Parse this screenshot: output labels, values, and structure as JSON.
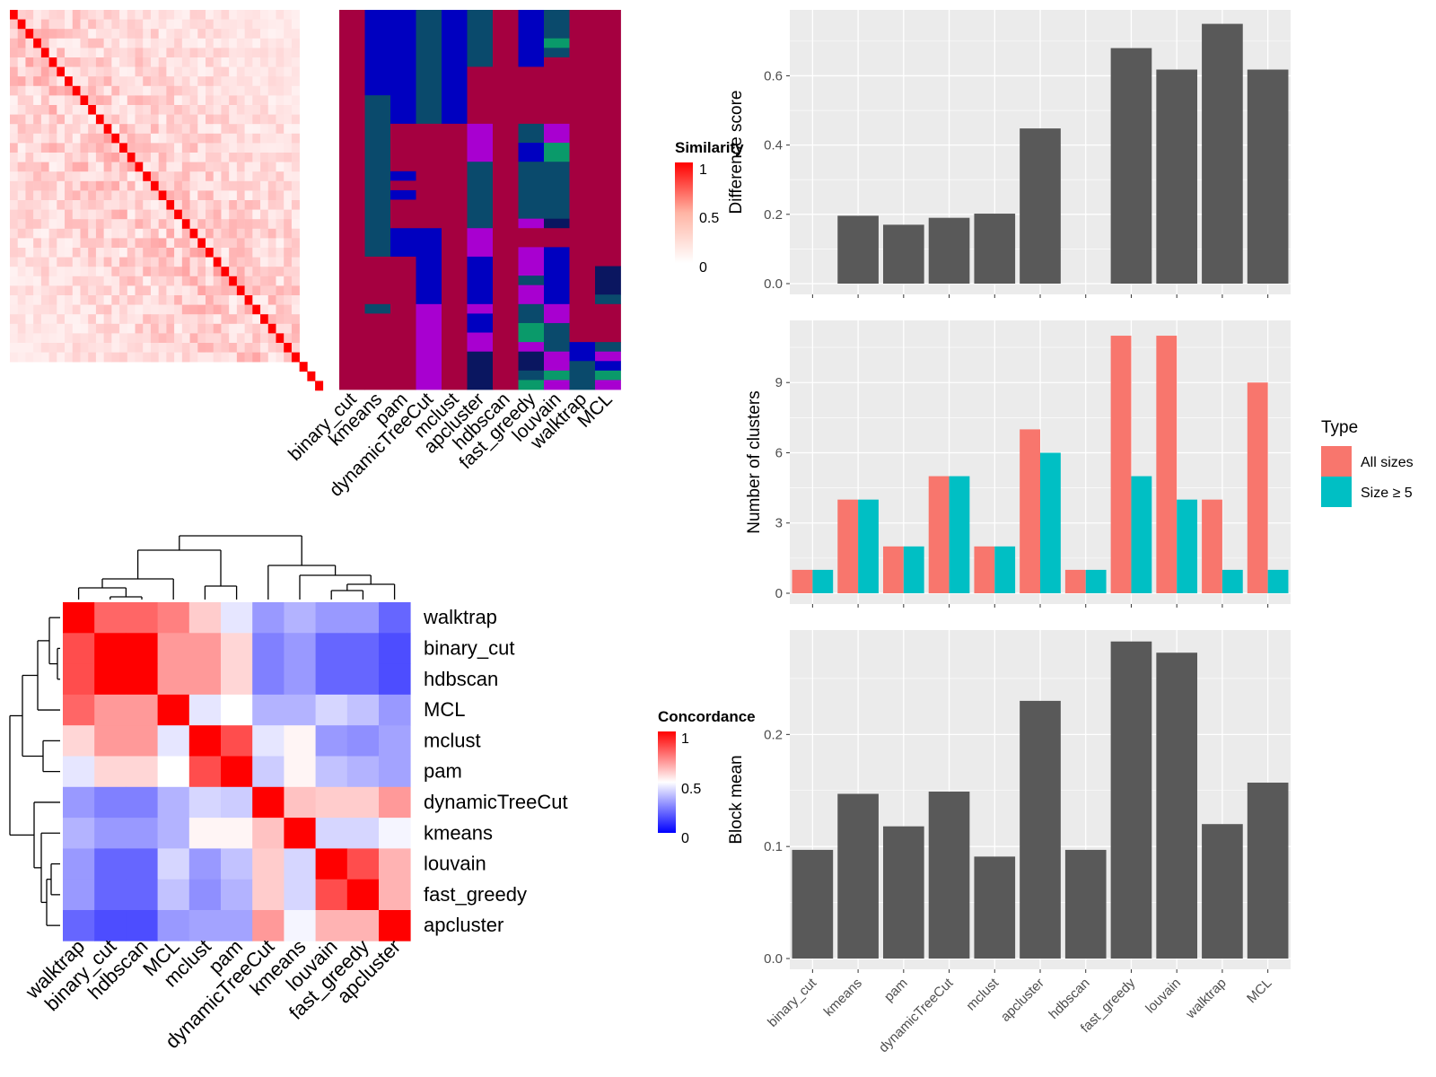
{
  "colors": {
    "sim_high": "#ff0000",
    "sim_low": "#ffffff",
    "class_crimson": "#a50040",
    "class_navy": "#05055f",
    "class_blue": "#0000c0",
    "class_teal": "#0a4a6c",
    "class_green": "#0a9a6a",
    "class_purple": "#a800d0",
    "class_dark": "#0a1660",
    "conc_high": "#ff0000",
    "conc_mid": "#ffffff",
    "conc_low": "#0000ff",
    "bar_gray": "#595959",
    "panel_bg": "#ebebeb",
    "grid": "#ffffff",
    "all_sizes": "#f8766d",
    "size5": "#00bfc4"
  },
  "methods": [
    "binary_cut",
    "kmeans",
    "pam",
    "dynamicTreeCut",
    "mclust",
    "apcluster",
    "hdbscan",
    "fast_greedy",
    "louvain",
    "walktrap",
    "MCL"
  ],
  "similarity_legend": {
    "title": "Similarity",
    "ticks": [
      "1",
      "0.5",
      "0"
    ]
  },
  "concordance_legend": {
    "title": "Concordance",
    "ticks": [
      "1",
      "0.5",
      "0"
    ]
  },
  "concordance_order": [
    "walktrap",
    "binary_cut",
    "hdbscan",
    "MCL",
    "mclust",
    "pam",
    "dynamicTreeCut",
    "kmeans",
    "louvain",
    "fast_greedy",
    "apcluster"
  ],
  "concordance_matrix": [
    [
      1.0,
      0.8,
      0.8,
      0.75,
      0.6,
      0.45,
      0.3,
      0.35,
      0.3,
      0.3,
      0.2
    ],
    [
      0.85,
      1.0,
      1.0,
      0.7,
      0.7,
      0.58,
      0.25,
      0.3,
      0.2,
      0.2,
      0.15
    ],
    [
      0.85,
      1.0,
      1.0,
      0.7,
      0.7,
      0.58,
      0.25,
      0.3,
      0.2,
      0.2,
      0.15
    ],
    [
      0.8,
      0.7,
      0.7,
      1.0,
      0.45,
      0.5,
      0.35,
      0.35,
      0.42,
      0.38,
      0.3
    ],
    [
      0.58,
      0.7,
      0.7,
      0.45,
      1.0,
      0.85,
      0.45,
      0.52,
      0.3,
      0.28,
      0.32
    ],
    [
      0.45,
      0.58,
      0.58,
      0.5,
      0.85,
      1.0,
      0.4,
      0.52,
      0.38,
      0.35,
      0.32
    ],
    [
      0.3,
      0.25,
      0.25,
      0.35,
      0.42,
      0.4,
      1.0,
      0.62,
      0.6,
      0.6,
      0.7
    ],
    [
      0.35,
      0.3,
      0.3,
      0.35,
      0.52,
      0.52,
      0.62,
      1.0,
      0.42,
      0.42,
      0.48
    ],
    [
      0.3,
      0.2,
      0.2,
      0.42,
      0.3,
      0.38,
      0.6,
      0.42,
      1.0,
      0.85,
      0.65
    ],
    [
      0.3,
      0.2,
      0.2,
      0.38,
      0.28,
      0.35,
      0.6,
      0.42,
      0.85,
      1.0,
      0.65
    ],
    [
      0.2,
      0.15,
      0.15,
      0.3,
      0.32,
      0.32,
      0.7,
      0.48,
      0.65,
      0.65,
      1.0
    ]
  ],
  "chart_data": [
    {
      "type": "bar",
      "categories": [
        "binary_cut",
        "kmeans",
        "pam",
        "dynamicTreeCut",
        "mclust",
        "apcluster",
        "hdbscan",
        "fast_greedy",
        "louvain",
        "walktrap",
        "MCL"
      ],
      "values": [
        0,
        0.196,
        0.17,
        0.19,
        0.202,
        0.448,
        0,
        0.68,
        0.618,
        0.75,
        0.618
      ],
      "ylabel": "Difference score",
      "ylim": [
        0,
        0.78
      ],
      "yticks": [
        "0.0",
        "0.2",
        "0.4",
        "0.6"
      ],
      "ytick_values": [
        0,
        0.2,
        0.4,
        0.6
      ]
    },
    {
      "type": "bar",
      "categories": [
        "binary_cut",
        "kmeans",
        "pam",
        "dynamicTreeCut",
        "mclust",
        "apcluster",
        "hdbscan",
        "fast_greedy",
        "louvain",
        "walktrap",
        "MCL"
      ],
      "series": [
        {
          "name": "All sizes",
          "values": [
            1,
            4,
            2,
            5,
            2,
            7,
            1,
            11,
            11,
            4,
            9
          ]
        },
        {
          "name": "Size ≥ 5",
          "values": [
            1,
            4,
            2,
            5,
            2,
            6,
            1,
            5,
            4,
            1,
            1
          ]
        }
      ],
      "ylabel": "Number of clusters",
      "ylim": [
        0,
        11.5
      ],
      "yticks": [
        "0",
        "3",
        "6",
        "9"
      ],
      "ytick_values": [
        0,
        3,
        6,
        9
      ],
      "legend_title": "Type",
      "legend_position": "right"
    },
    {
      "type": "bar",
      "categories": [
        "binary_cut",
        "kmeans",
        "pam",
        "dynamicTreeCut",
        "mclust",
        "apcluster",
        "hdbscan",
        "fast_greedy",
        "louvain",
        "walktrap",
        "MCL"
      ],
      "values": [
        0.097,
        0.147,
        0.118,
        0.149,
        0.091,
        0.23,
        0.097,
        0.283,
        0.273,
        0.12,
        0.157
      ],
      "ylabel": "Block mean",
      "ylim": [
        0,
        0.29
      ],
      "yticks": [
        "0.0",
        "0.1",
        "0.2"
      ],
      "ytick_values": [
        0,
        0.1,
        0.2
      ]
    }
  ]
}
